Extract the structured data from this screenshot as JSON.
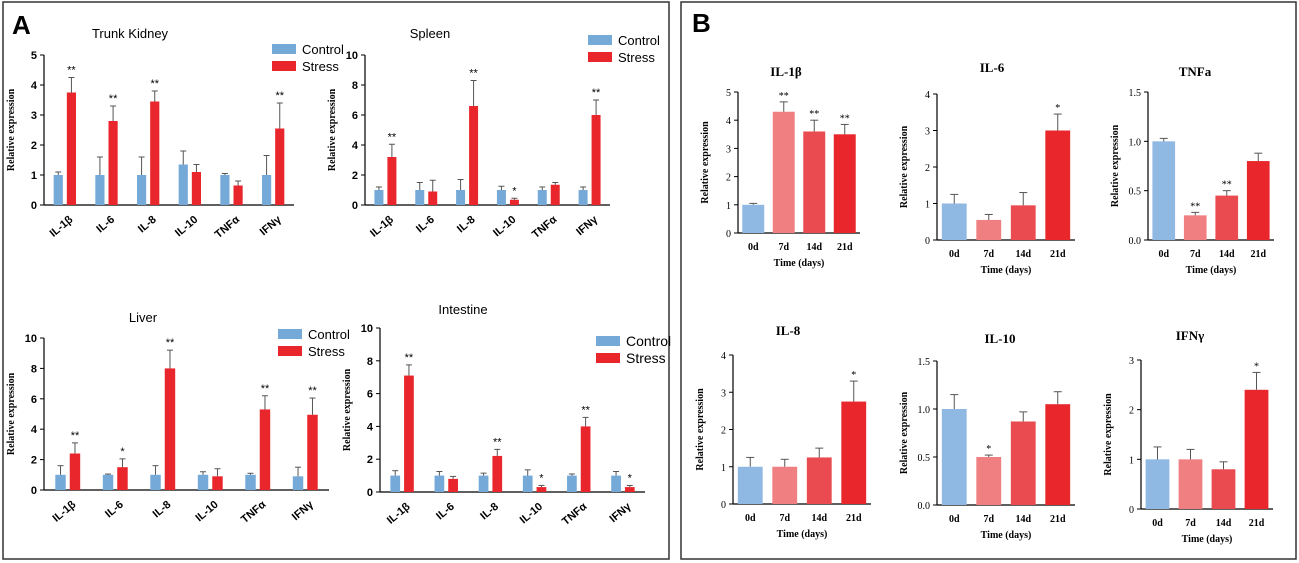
{
  "panels": {
    "A": "A",
    "B": "B"
  },
  "colors": {
    "control": "#74a9d8",
    "stress": "#e8262b",
    "d0": "#8fb9e3",
    "d7": "#f07f82",
    "d14": "#ea4b50",
    "d21": "#e8262b",
    "err": "#555555"
  },
  "chart_data": [
    {
      "panel": "A",
      "type": "bar",
      "title": "Trunk Kidney",
      "categories": [
        "IL-1β",
        "IL-6",
        "IL-8",
        "IL-10",
        "TNFα",
        "IFNγ"
      ],
      "series": [
        {
          "name": "Control",
          "values": [
            1.0,
            1.0,
            1.0,
            1.35,
            1.0,
            1.0
          ],
          "errors": [
            0.1,
            0.6,
            0.6,
            0.45,
            0.05,
            0.65
          ]
        },
        {
          "name": "Stress",
          "values": [
            3.75,
            2.8,
            3.45,
            1.1,
            0.65,
            2.55
          ],
          "errors": [
            0.5,
            0.5,
            0.35,
            0.25,
            0.15,
            0.85
          ]
        }
      ],
      "sig": [
        "**",
        "**",
        "**",
        "",
        "",
        "**"
      ],
      "ylim": [
        0,
        5
      ],
      "yticks": [
        0,
        1,
        2,
        3,
        4,
        5
      ],
      "ytick_labels": [
        "0",
        "1",
        "2",
        "3",
        "4",
        "5"
      ],
      "ylabel": "Relative expression",
      "xlabel": "",
      "legend": [
        "Control",
        "Stress"
      ]
    },
    {
      "panel": "A",
      "type": "bar",
      "title": "Spleen",
      "categories": [
        "IL-1β",
        "IL-6",
        "IL-8",
        "IL-10",
        "TNFα",
        "IFNγ"
      ],
      "series": [
        {
          "name": "Control",
          "values": [
            1.0,
            1.0,
            1.0,
            1.0,
            1.0,
            1.0
          ],
          "errors": [
            0.2,
            0.5,
            0.7,
            0.25,
            0.2,
            0.2
          ]
        },
        {
          "name": "Stress",
          "values": [
            3.2,
            0.9,
            6.6,
            0.35,
            1.35,
            6.0
          ],
          "errors": [
            0.85,
            0.75,
            1.7,
            0.1,
            0.15,
            1.0
          ]
        }
      ],
      "sig": [
        "**",
        "",
        "**",
        "*",
        "",
        "**"
      ],
      "ylim": [
        0,
        10
      ],
      "yticks": [
        0,
        2,
        4,
        6,
        8,
        10
      ],
      "ytick_labels": [
        "0",
        "2",
        "4",
        "6",
        "8",
        "10"
      ],
      "ylabel": "Relative expression",
      "xlabel": "",
      "legend": [
        "Control",
        "Stress"
      ]
    },
    {
      "panel": "A",
      "type": "bar",
      "title": "Liver",
      "categories": [
        "IL-1β",
        "IL-6",
        "IL-8",
        "IL-10",
        "TNFα",
        "IFNγ"
      ],
      "series": [
        {
          "name": "Control",
          "values": [
            1.0,
            1.0,
            1.0,
            1.0,
            1.0,
            0.9
          ],
          "errors": [
            0.6,
            0.05,
            0.6,
            0.2,
            0.1,
            0.6
          ]
        },
        {
          "name": "Stress",
          "values": [
            2.4,
            1.5,
            8.0,
            0.9,
            5.3,
            4.95
          ],
          "errors": [
            0.7,
            0.55,
            1.2,
            0.5,
            0.9,
            1.1
          ]
        }
      ],
      "sig": [
        "**",
        "*",
        "**",
        "",
        "**",
        "**"
      ],
      "ylim": [
        0,
        10
      ],
      "yticks": [
        0,
        2,
        4,
        6,
        8,
        10
      ],
      "ytick_labels": [
        "0",
        "2",
        "4",
        "6",
        "8",
        "10"
      ],
      "ylabel": "Relative expression",
      "xlabel": "",
      "legend": [
        "Control",
        "Stress"
      ]
    },
    {
      "panel": "A",
      "type": "bar",
      "title": "Intestine",
      "categories": [
        "IL-1β",
        "IL-6",
        "IL-8",
        "IL-10",
        "TNFα",
        "IFNγ"
      ],
      "series": [
        {
          "name": "Control",
          "values": [
            1.0,
            1.0,
            1.0,
            1.0,
            1.0,
            1.0
          ],
          "errors": [
            0.3,
            0.25,
            0.15,
            0.35,
            0.1,
            0.25
          ]
        },
        {
          "name": "Stress",
          "values": [
            7.1,
            0.8,
            2.2,
            0.3,
            4.0,
            0.3
          ],
          "errors": [
            0.65,
            0.15,
            0.4,
            0.1,
            0.55,
            0.1
          ]
        }
      ],
      "sig": [
        "**",
        "",
        "**",
        "*",
        "**",
        "*"
      ],
      "ylim": [
        0,
        10
      ],
      "yticks": [
        0,
        2,
        4,
        6,
        8,
        10
      ],
      "ytick_labels": [
        "0",
        "2",
        "4",
        "6",
        "8",
        "10"
      ],
      "ylabel": "Relative expression",
      "xlabel": "",
      "legend": [
        "Control",
        "Stress"
      ]
    },
    {
      "panel": "B",
      "type": "bar",
      "title": "IL-1β",
      "categories": [
        "0d",
        "7d",
        "14d",
        "21d"
      ],
      "values": [
        1.0,
        4.3,
        3.6,
        3.5
      ],
      "errors": [
        0.05,
        0.35,
        0.4,
        0.35
      ],
      "sig": [
        "",
        "**",
        "**",
        "**"
      ],
      "ylim": [
        0,
        5
      ],
      "yticks": [
        0,
        1,
        2,
        3,
        4,
        5
      ],
      "ytick_labels": [
        "0",
        "1",
        "2",
        "3",
        "4",
        "5"
      ],
      "ylabel": "Relative expression",
      "xlabel": "Time (days)"
    },
    {
      "panel": "B",
      "type": "bar",
      "title": "IL-6",
      "categories": [
        "0d",
        "7d",
        "14d",
        "21d"
      ],
      "values": [
        1.0,
        0.55,
        0.95,
        3.0
      ],
      "errors": [
        0.25,
        0.15,
        0.35,
        0.45
      ],
      "sig": [
        "",
        "",
        "",
        "*"
      ],
      "ylim": [
        0,
        4
      ],
      "yticks": [
        0,
        1,
        2,
        3,
        4
      ],
      "ytick_labels": [
        "0",
        "1",
        "2",
        "3",
        "4"
      ],
      "ylabel": "Relative expression",
      "xlabel": "Time (days)"
    },
    {
      "panel": "B",
      "type": "bar",
      "title": "TNFa",
      "categories": [
        "0d",
        "7d",
        "14d",
        "21d"
      ],
      "values": [
        1.0,
        0.25,
        0.45,
        0.8
      ],
      "errors": [
        0.03,
        0.03,
        0.05,
        0.08
      ],
      "sig": [
        "",
        "**",
        "**",
        ""
      ],
      "ylim": [
        0,
        1.5
      ],
      "yticks": [
        0,
        0.5,
        1.0,
        1.5
      ],
      "ytick_labels": [
        "0.0",
        "0.5",
        "1.0",
        "1.5"
      ],
      "ylabel": "Relative expression",
      "xlabel": "Time (days)"
    },
    {
      "panel": "B",
      "type": "bar",
      "title": "IL-8",
      "categories": [
        "0d",
        "7d",
        "14d",
        "21d"
      ],
      "values": [
        1.0,
        1.0,
        1.25,
        2.75
      ],
      "errors": [
        0.25,
        0.2,
        0.25,
        0.55
      ],
      "sig": [
        "",
        "",
        "",
        "*"
      ],
      "ylim": [
        0,
        4
      ],
      "yticks": [
        0,
        1,
        2,
        3,
        4
      ],
      "ytick_labels": [
        "0",
        "1",
        "2",
        "3",
        "4"
      ],
      "ylabel": "Relative expression",
      "xlabel": "Time (days)"
    },
    {
      "panel": "B",
      "type": "bar",
      "title": "IL-10",
      "categories": [
        "0d",
        "7d",
        "14d",
        "21d"
      ],
      "values": [
        1.0,
        0.5,
        0.87,
        1.05
      ],
      "errors": [
        0.15,
        0.02,
        0.1,
        0.13
      ],
      "sig": [
        "",
        "*",
        "",
        ""
      ],
      "ylim": [
        0,
        1.5
      ],
      "yticks": [
        0,
        0.5,
        1.0,
        1.5
      ],
      "ytick_labels": [
        "0.0",
        "0.5",
        "1.0",
        "1.5"
      ],
      "ylabel": "Relative expression",
      "xlabel": "Time (days)"
    },
    {
      "panel": "B",
      "type": "bar",
      "title": "IFNγ",
      "categories": [
        "0d",
        "7d",
        "14d",
        "21d"
      ],
      "values": [
        1.0,
        1.0,
        0.8,
        2.4
      ],
      "errors": [
        0.25,
        0.2,
        0.15,
        0.35
      ],
      "sig": [
        "",
        "",
        "",
        "*"
      ],
      "ylim": [
        0,
        3
      ],
      "yticks": [
        0,
        1,
        2,
        3
      ],
      "ytick_labels": [
        "0",
        "1",
        "2",
        "3"
      ],
      "ylabel": "Relative expression",
      "xlabel": "Time (days)"
    }
  ]
}
